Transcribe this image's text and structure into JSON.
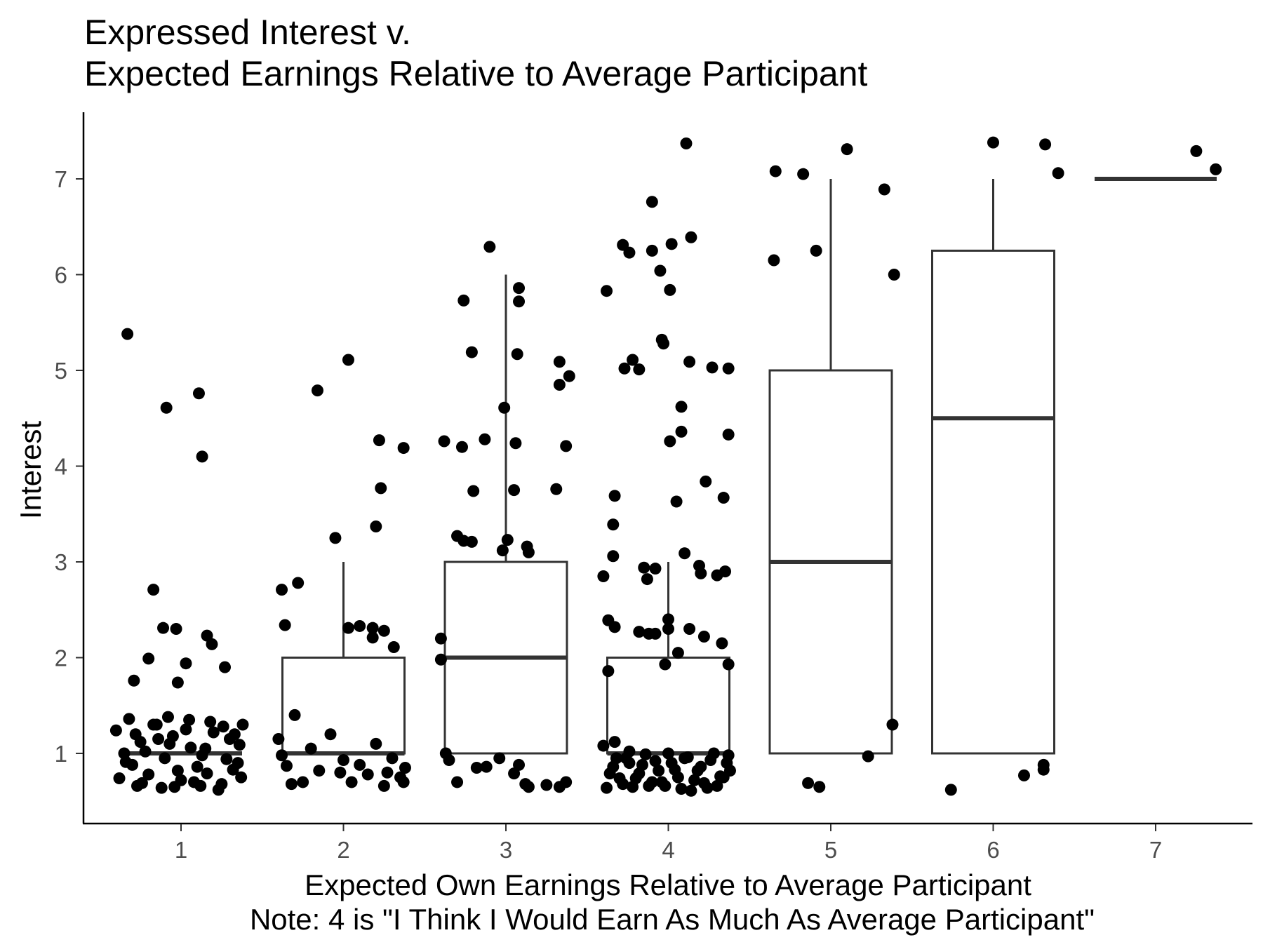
{
  "chart_data": {
    "type": "box",
    "title_lines": [
      "Expressed Interest v.",
      "Expected Earnings Relative to Average Participant"
    ],
    "xlabel_lines": [
      "Expected Own Earnings Relative to Average Participant",
      "Note: 4 is \"I Think I Would Earn As Much As Average Participant\""
    ],
    "ylabel": "Interest",
    "categories": [
      "1",
      "2",
      "3",
      "4",
      "5",
      "6",
      "7"
    ],
    "x_ticks": [
      1,
      2,
      3,
      4,
      5,
      6,
      7
    ],
    "y_ticks": [
      1,
      2,
      3,
      4,
      5,
      6,
      7
    ],
    "x_range": [
      0.4,
      7.6
    ],
    "y_range": [
      0.3,
      7.7
    ],
    "grid": false,
    "legend": "none",
    "boxes": [
      {
        "category": 1,
        "q1": 1,
        "median": 1,
        "q3": 1,
        "whisker_low": 1,
        "whisker_high": 1
      },
      {
        "category": 2,
        "q1": 1,
        "median": 1,
        "q3": 2,
        "whisker_low": 1,
        "whisker_high": 3
      },
      {
        "category": 3,
        "q1": 1,
        "median": 2,
        "q3": 3,
        "whisker_low": 1,
        "whisker_high": 6
      },
      {
        "category": 4,
        "q1": 1,
        "median": 1,
        "q3": 2,
        "whisker_low": 1,
        "whisker_high": 3
      },
      {
        "category": 5,
        "q1": 1,
        "median": 3,
        "q3": 5,
        "whisker_low": 1,
        "whisker_high": 7
      },
      {
        "category": 6,
        "q1": 1,
        "median": 4.5,
        "q3": 6.25,
        "whisker_low": 1,
        "whisker_high": 7
      },
      {
        "category": 7,
        "q1": 7,
        "median": 7,
        "q3": 7,
        "whisker_low": 7,
        "whisker_high": 7
      }
    ],
    "points": [
      [
        0.67,
        5.38
      ],
      [
        0.91,
        4.61
      ],
      [
        1.11,
        4.76
      ],
      [
        1.13,
        4.1
      ],
      [
        0.83,
        2.71
      ],
      [
        0.89,
        2.31
      ],
      [
        0.97,
        2.3
      ],
      [
        1.16,
        2.23
      ],
      [
        1.19,
        2.14
      ],
      [
        0.8,
        1.99
      ],
      [
        1.27,
        1.9
      ],
      [
        1.03,
        1.94
      ],
      [
        0.71,
        1.76
      ],
      [
        0.98,
        1.74
      ],
      [
        0.6,
        1.24
      ],
      [
        0.65,
        1.0
      ],
      [
        0.7,
        0.88
      ],
      [
        0.75,
        1.12
      ],
      [
        0.8,
        0.78
      ],
      [
        0.85,
        1.3
      ],
      [
        0.9,
        0.95
      ],
      [
        0.95,
        1.18
      ],
      [
        1.0,
        0.72
      ],
      [
        1.05,
        1.35
      ],
      [
        1.1,
        0.86
      ],
      [
        1.15,
        1.05
      ],
      [
        1.2,
        1.22
      ],
      [
        1.25,
        0.68
      ],
      [
        1.3,
        1.15
      ],
      [
        1.35,
        0.9
      ],
      [
        1.38,
        1.3
      ],
      [
        0.62,
        0.74
      ],
      [
        0.68,
        1.36
      ],
      [
        0.73,
        0.66
      ],
      [
        0.78,
        1.02
      ],
      [
        0.83,
        1.3
      ],
      [
        0.88,
        0.64
      ],
      [
        0.93,
        1.1
      ],
      [
        0.98,
        0.82
      ],
      [
        1.03,
        1.25
      ],
      [
        1.08,
        0.7
      ],
      [
        1.13,
        0.98
      ],
      [
        1.18,
        1.33
      ],
      [
        1.23,
        0.62
      ],
      [
        1.28,
        0.94
      ],
      [
        1.33,
        1.2
      ],
      [
        1.37,
        0.75
      ],
      [
        0.66,
        0.91
      ],
      [
        0.76,
        0.69
      ],
      [
        0.86,
        1.15
      ],
      [
        0.96,
        0.65
      ],
      [
        1.06,
        1.06
      ],
      [
        1.16,
        0.79
      ],
      [
        1.26,
        1.28
      ],
      [
        1.36,
        1.09
      ],
      [
        0.72,
        1.2
      ],
      [
        0.92,
        1.38
      ],
      [
        1.12,
        0.66
      ],
      [
        1.32,
        0.83
      ],
      [
        2.03,
        5.11
      ],
      [
        1.84,
        4.79
      ],
      [
        2.22,
        4.27
      ],
      [
        2.37,
        4.19
      ],
      [
        2.23,
        3.77
      ],
      [
        2.2,
        3.37
      ],
      [
        1.95,
        3.25
      ],
      [
        1.72,
        2.78
      ],
      [
        1.62,
        2.71
      ],
      [
        1.64,
        2.34
      ],
      [
        2.03,
        2.31
      ],
      [
        2.1,
        2.33
      ],
      [
        2.18,
        2.31
      ],
      [
        2.25,
        2.28
      ],
      [
        2.18,
        2.21
      ],
      [
        2.31,
        2.11
      ],
      [
        1.6,
        1.15
      ],
      [
        1.65,
        0.87
      ],
      [
        1.7,
        1.4
      ],
      [
        1.75,
        0.7
      ],
      [
        1.8,
        1.05
      ],
      [
        1.85,
        0.82
      ],
      [
        1.92,
        1.2
      ],
      [
        2.0,
        0.93
      ],
      [
        2.05,
        0.7
      ],
      [
        2.1,
        0.88
      ],
      [
        2.15,
        0.78
      ],
      [
        2.2,
        1.1
      ],
      [
        2.25,
        0.66
      ],
      [
        2.3,
        0.95
      ],
      [
        2.35,
        0.75
      ],
      [
        2.38,
        0.85
      ],
      [
        1.62,
        0.98
      ],
      [
        1.68,
        0.68
      ],
      [
        2.27,
        0.8
      ],
      [
        2.37,
        0.7
      ],
      [
        1.98,
        0.8
      ],
      [
        2.9,
        6.29
      ],
      [
        2.74,
        5.73
      ],
      [
        3.08,
        5.86
      ],
      [
        3.08,
        5.72
      ],
      [
        2.79,
        5.19
      ],
      [
        3.07,
        5.17
      ],
      [
        3.33,
        5.09
      ],
      [
        3.39,
        4.94
      ],
      [
        3.33,
        4.85
      ],
      [
        2.99,
        4.61
      ],
      [
        2.62,
        4.26
      ],
      [
        2.73,
        4.2
      ],
      [
        2.87,
        4.28
      ],
      [
        3.06,
        4.24
      ],
      [
        3.37,
        4.21
      ],
      [
        2.8,
        3.74
      ],
      [
        3.05,
        3.75
      ],
      [
        3.31,
        3.76
      ],
      [
        3.01,
        3.23
      ],
      [
        2.7,
        3.27
      ],
      [
        2.74,
        3.22
      ],
      [
        2.79,
        3.21
      ],
      [
        2.98,
        3.12
      ],
      [
        3.13,
        3.16
      ],
      [
        3.14,
        3.1
      ],
      [
        2.6,
        2.2
      ],
      [
        2.6,
        1.98
      ],
      [
        2.63,
        1.0
      ],
      [
        2.65,
        0.93
      ],
      [
        2.7,
        0.7
      ],
      [
        2.82,
        0.85
      ],
      [
        2.88,
        0.86
      ],
      [
        2.96,
        0.95
      ],
      [
        3.05,
        0.79
      ],
      [
        3.08,
        0.88
      ],
      [
        3.12,
        0.68
      ],
      [
        3.14,
        0.65
      ],
      [
        3.25,
        0.67
      ],
      [
        3.33,
        0.65
      ],
      [
        3.37,
        0.7
      ],
      [
        4.11,
        7.37
      ],
      [
        3.9,
        6.76
      ],
      [
        3.72,
        6.31
      ],
      [
        3.76,
        6.23
      ],
      [
        3.9,
        6.25
      ],
      [
        4.02,
        6.32
      ],
      [
        4.14,
        6.39
      ],
      [
        3.95,
        6.04
      ],
      [
        4.01,
        5.84
      ],
      [
        3.62,
        5.83
      ],
      [
        3.96,
        5.32
      ],
      [
        3.97,
        5.28
      ],
      [
        3.73,
        5.02
      ],
      [
        3.78,
        5.11
      ],
      [
        3.82,
        5.01
      ],
      [
        4.13,
        5.09
      ],
      [
        4.27,
        5.03
      ],
      [
        4.37,
        5.02
      ],
      [
        4.08,
        4.62
      ],
      [
        4.08,
        4.36
      ],
      [
        4.01,
        4.26
      ],
      [
        4.37,
        4.33
      ],
      [
        4.23,
        3.84
      ],
      [
        4.05,
        3.63
      ],
      [
        3.67,
        3.69
      ],
      [
        4.34,
        3.67
      ],
      [
        3.66,
        3.39
      ],
      [
        4.1,
        3.09
      ],
      [
        3.66,
        3.06
      ],
      [
        4.19,
        2.96
      ],
      [
        4.35,
        2.9
      ],
      [
        3.85,
        2.94
      ],
      [
        3.92,
        2.93
      ],
      [
        3.87,
        2.82
      ],
      [
        4.3,
        2.86
      ],
      [
        4.2,
        2.88
      ],
      [
        3.6,
        2.85
      ],
      [
        3.63,
        2.39
      ],
      [
        4.0,
        2.4
      ],
      [
        3.67,
        2.32
      ],
      [
        4.0,
        2.3
      ],
      [
        4.13,
        2.3
      ],
      [
        3.82,
        2.27
      ],
      [
        3.88,
        2.25
      ],
      [
        3.92,
        2.25
      ],
      [
        4.22,
        2.22
      ],
      [
        4.33,
        2.15
      ],
      [
        3.6,
        1.08
      ],
      [
        3.64,
        0.79
      ],
      [
        3.68,
        0.95
      ],
      [
        3.72,
        0.68
      ],
      [
        3.76,
        1.02
      ],
      [
        3.8,
        0.74
      ],
      [
        3.84,
        0.88
      ],
      [
        3.88,
        0.66
      ],
      [
        3.92,
        0.92
      ],
      [
        3.96,
        0.7
      ],
      [
        4.0,
        1.0
      ],
      [
        4.04,
        0.83
      ],
      [
        4.08,
        0.63
      ],
      [
        4.12,
        0.96
      ],
      [
        4.16,
        0.72
      ],
      [
        4.2,
        0.86
      ],
      [
        4.24,
        0.64
      ],
      [
        4.28,
        1.0
      ],
      [
        4.32,
        0.76
      ],
      [
        4.36,
        0.9
      ],
      [
        4.38,
        0.82
      ],
      [
        3.62,
        0.64
      ],
      [
        3.66,
        0.86
      ],
      [
        3.7,
        0.74
      ],
      [
        3.74,
        0.95
      ],
      [
        3.78,
        0.65
      ],
      [
        3.82,
        0.79
      ],
      [
        3.86,
        0.99
      ],
      [
        3.9,
        0.7
      ],
      [
        3.94,
        0.82
      ],
      [
        3.98,
        0.66
      ],
      [
        4.02,
        0.9
      ],
      [
        4.06,
        0.75
      ],
      [
        4.1,
        0.95
      ],
      [
        4.14,
        0.61
      ],
      [
        4.18,
        0.82
      ],
      [
        4.22,
        0.69
      ],
      [
        4.26,
        0.93
      ],
      [
        4.3,
        0.66
      ],
      [
        4.34,
        0.75
      ],
      [
        4.37,
        0.98
      ],
      [
        3.63,
        1.86
      ],
      [
        3.67,
        1.12
      ],
      [
        4.37,
        1.93
      ],
      [
        3.76,
        0.9
      ],
      [
        3.98,
        1.93
      ],
      [
        4.06,
        2.05
      ],
      [
        4.66,
        7.08
      ],
      [
        4.83,
        7.05
      ],
      [
        5.1,
        7.31
      ],
      [
        5.33,
        6.89
      ],
      [
        4.65,
        6.15
      ],
      [
        4.91,
        6.25
      ],
      [
        5.39,
        6.0
      ],
      [
        4.86,
        0.69
      ],
      [
        4.93,
        0.65
      ],
      [
        5.23,
        0.97
      ],
      [
        5.38,
        1.3
      ],
      [
        6.0,
        7.38
      ],
      [
        6.32,
        7.36
      ],
      [
        6.4,
        7.06
      ],
      [
        5.74,
        0.62
      ],
      [
        6.19,
        0.77
      ],
      [
        6.31,
        0.88
      ],
      [
        6.31,
        0.83
      ],
      [
        7.25,
        7.29
      ],
      [
        7.37,
        7.1
      ]
    ]
  }
}
